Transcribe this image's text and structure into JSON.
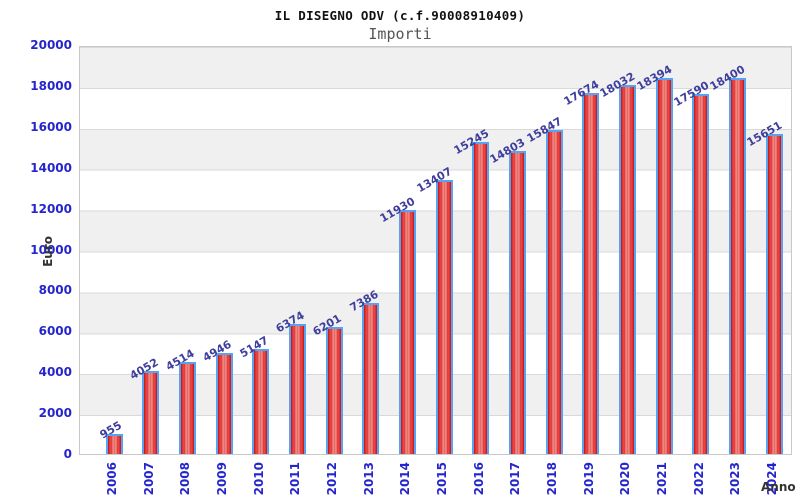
{
  "chart_data": {
    "type": "bar",
    "title": "IL DISEGNO ODV (c.f.90008910409)",
    "subtitle": "Importi",
    "xlabel": "Anno",
    "ylabel": "Euro",
    "categories": [
      "2006",
      "2007",
      "2008",
      "2009",
      "2010",
      "2011",
      "2012",
      "2013",
      "2014",
      "2015",
      "2016",
      "2017",
      "2018",
      "2019",
      "2020",
      "2021",
      "2022",
      "2023",
      "2024"
    ],
    "values": [
      955,
      4052,
      4514,
      4946,
      5147,
      6374,
      6201,
      7386,
      11930,
      13407,
      15245,
      14803,
      15847,
      17674,
      18032,
      18394,
      17590,
      18400,
      15651
    ],
    "ylim": [
      0,
      20000
    ],
    "y_ticks": [
      0,
      2000,
      4000,
      6000,
      8000,
      10000,
      12000,
      14000,
      16000,
      18000,
      20000
    ],
    "grid": "horizontal-bands-alternating",
    "legend": "none",
    "value_label_rotation_deg": -30,
    "x_tick_rotation_deg": -90
  },
  "colors": {
    "bar_fill": "#e93a3a",
    "bar_dark": "#cc1f1f",
    "bar_light": "#f29b94",
    "bar_border": "#55a3f2",
    "tick_label": "#2525cd",
    "value_label": "#3e3e9c",
    "axis_title": "#333333",
    "subtitle": "#555555",
    "band_gray": "#f0f0f0",
    "grid_line": "#d9d9d9",
    "plot_border": "#c9c9c9"
  }
}
